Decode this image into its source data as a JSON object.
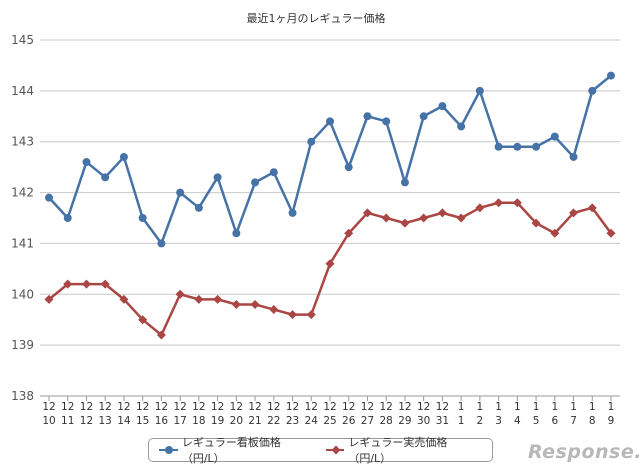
{
  "chart_data": {
    "type": "line",
    "title": "最近1ヶ月のレギュラー価格",
    "ylim": [
      138,
      145
    ],
    "yticks": [
      "138",
      "139",
      "140",
      "141",
      "142",
      "143",
      "144",
      "145"
    ],
    "categories": [
      [
        "12",
        "10"
      ],
      [
        "12",
        "11"
      ],
      [
        "12",
        "12"
      ],
      [
        "12",
        "13"
      ],
      [
        "12",
        "14"
      ],
      [
        "12",
        "15"
      ],
      [
        "12",
        "16"
      ],
      [
        "12",
        "17"
      ],
      [
        "12",
        "18"
      ],
      [
        "12",
        "19"
      ],
      [
        "12",
        "20"
      ],
      [
        "12",
        "21"
      ],
      [
        "12",
        "22"
      ],
      [
        "12",
        "23"
      ],
      [
        "12",
        "24"
      ],
      [
        "12",
        "25"
      ],
      [
        "12",
        "26"
      ],
      [
        "12",
        "27"
      ],
      [
        "12",
        "28"
      ],
      [
        "12",
        "29"
      ],
      [
        "12",
        "30"
      ],
      [
        "12",
        "31"
      ],
      [
        "1",
        "1"
      ],
      [
        "1",
        "2"
      ],
      [
        "1",
        "3"
      ],
      [
        "1",
        "4"
      ],
      [
        "1",
        "5"
      ],
      [
        "1",
        "6"
      ],
      [
        "1",
        "7"
      ],
      [
        "1",
        "8"
      ],
      [
        "1",
        "9"
      ]
    ],
    "series": [
      {
        "name": "レギュラー看板価格（円/L）",
        "color": "#4572a7",
        "marker": "circle",
        "values": [
          141.9,
          141.5,
          142.6,
          142.3,
          142.7,
          141.5,
          141.0,
          142.0,
          141.7,
          142.3,
          141.2,
          142.2,
          142.4,
          141.6,
          143.0,
          143.4,
          142.5,
          143.5,
          143.4,
          142.2,
          143.5,
          143.7,
          143.3,
          144.0,
          142.9,
          142.9,
          142.9,
          143.1,
          142.7,
          144.0,
          144.3
        ]
      },
      {
        "name": "レギュラー実売価格（円/L）",
        "color": "#aa4643",
        "marker": "diamond",
        "values": [
          139.9,
          140.2,
          140.2,
          140.2,
          139.9,
          139.5,
          139.2,
          140.0,
          139.9,
          139.9,
          139.8,
          139.8,
          139.7,
          139.6,
          139.6,
          140.6,
          141.2,
          141.6,
          141.5,
          141.4,
          141.5,
          141.6,
          141.5,
          141.7,
          141.8,
          141.8,
          141.4,
          141.2,
          141.6,
          141.7,
          141.2
        ]
      }
    ],
    "legend_position": "bottom"
  },
  "watermark": "Response."
}
